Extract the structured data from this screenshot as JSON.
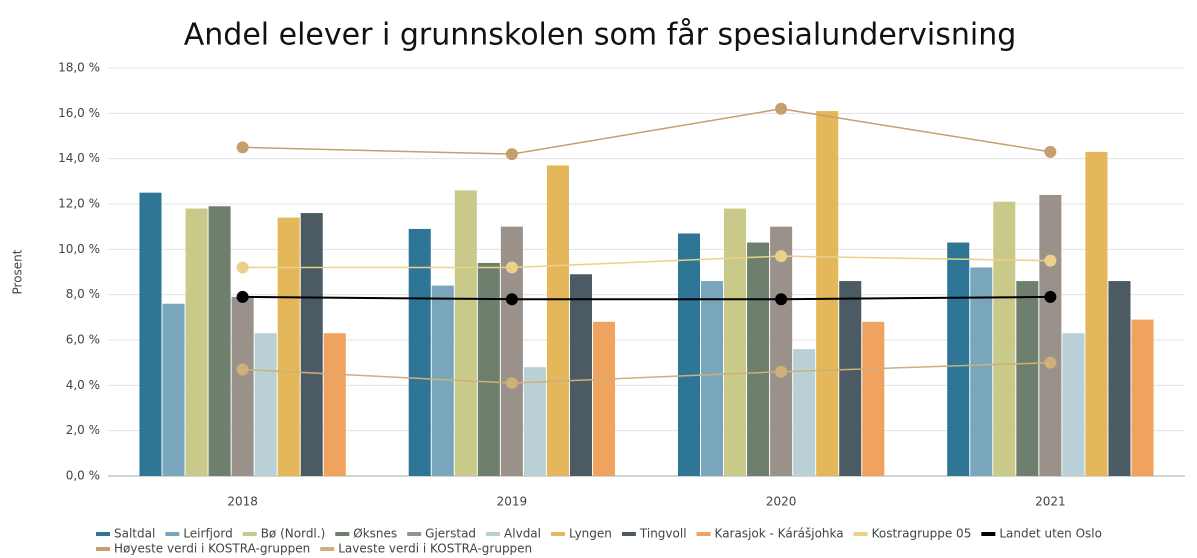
{
  "chart_data": {
    "type": "bar",
    "title": "Andel elever i grunnskolen som får spesialundervisning",
    "y_label": "Prosent",
    "categories": [
      "2018",
      "2019",
      "2020",
      "2021"
    ],
    "ylim": [
      0,
      18
    ],
    "yticks": [
      {
        "value": 0,
        "label": "0,0 %"
      },
      {
        "value": 2,
        "label": "2,0 %"
      },
      {
        "value": 4,
        "label": "4,0 %"
      },
      {
        "value": 6,
        "label": "6,0 %"
      },
      {
        "value": 8,
        "label": "8,0 %"
      },
      {
        "value": 10,
        "label": "10,0 %"
      },
      {
        "value": 12,
        "label": "12,0 %"
      },
      {
        "value": 14,
        "label": "14,0 %"
      },
      {
        "value": 16,
        "label": "16,0 %"
      },
      {
        "value": 18,
        "label": "18,0 %"
      }
    ],
    "grid": true,
    "legend": "bottom",
    "series": [
      {
        "name": "Saltdal",
        "color": "#2e7596",
        "kind": "bar",
        "values": [
          12.5,
          10.9,
          10.7,
          10.3
        ]
      },
      {
        "name": "Leirfjord",
        "color": "#7aa6bd",
        "kind": "bar",
        "values": [
          7.6,
          8.4,
          8.6,
          9.2
        ]
      },
      {
        "name": "Bø (Nordl.)",
        "color": "#c9c98a",
        "kind": "bar",
        "values": [
          11.8,
          12.6,
          11.8,
          12.1
        ]
      },
      {
        "name": "Øksnes",
        "color": "#6f7f6e",
        "kind": "bar",
        "values": [
          11.9,
          9.4,
          10.3,
          8.6
        ]
      },
      {
        "name": "Gjerstad",
        "color": "#9a928a",
        "kind": "bar",
        "values": [
          7.9,
          11.0,
          11.0,
          12.4
        ]
      },
      {
        "name": "Alvdal",
        "color": "#b9d0d6",
        "kind": "bar",
        "values": [
          6.3,
          4.8,
          5.6,
          6.3
        ]
      },
      {
        "name": "Lyngen",
        "color": "#e3b75a",
        "kind": "bar",
        "values": [
          11.4,
          13.7,
          16.1,
          14.3
        ]
      },
      {
        "name": "Tingvoll",
        "color": "#4b5a63",
        "kind": "bar",
        "values": [
          11.6,
          8.9,
          8.6,
          8.6
        ]
      },
      {
        "name": "Karasjok - Kárášjohka",
        "color": "#f0a35e",
        "kind": "bar",
        "values": [
          6.3,
          6.8,
          6.8,
          6.9
        ]
      },
      {
        "name": "Kostragruppe 05",
        "color": "#ead18a",
        "kind": "line",
        "values": [
          9.2,
          9.2,
          9.7,
          9.5
        ]
      },
      {
        "name": "Landet uten Oslo",
        "color": "#000000",
        "kind": "line",
        "values": [
          7.9,
          7.8,
          7.8,
          7.9
        ]
      },
      {
        "name": "Høyeste verdi i KOSTRA-gruppen",
        "color": "#c4a06f",
        "kind": "line",
        "values": [
          14.5,
          14.2,
          16.2,
          14.3
        ]
      },
      {
        "name": "Laveste verdi i KOSTRA-gruppen",
        "color": "#cdb07a",
        "kind": "line",
        "values": [
          4.7,
          4.1,
          4.6,
          5.0
        ]
      }
    ]
  }
}
